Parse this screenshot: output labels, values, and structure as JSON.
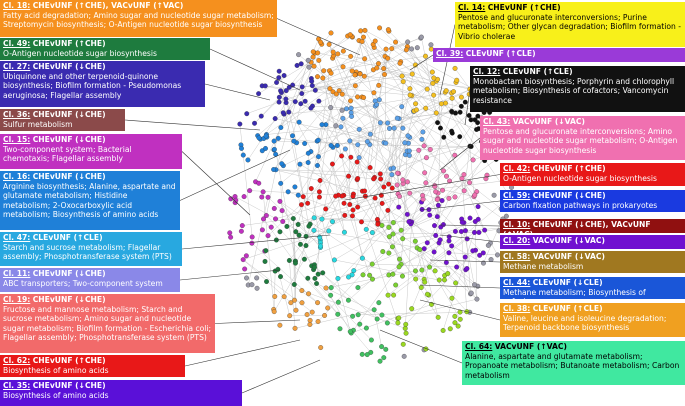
{
  "boxes": [
    {
      "id": "Cl. 18:",
      "label": "CHEvUNF (↑CHE), VACvUNF (↑VAC)",
      "text": "Fatty acid degradation; Amino sugar and nucleotide sugar metabolism; Streptomycin biosynthesis; O-Antigen nucleotide sugar biosynthesis"
    },
    {
      "id": "Cl. 49:",
      "label": "CHEvUNF (↑CHE)",
      "text": "O-Antigen nucleotide sugar biosynthesis"
    },
    {
      "id": "Cl. 27:",
      "label": "CHEvUNF (↓CHE)",
      "text": "Ubiquinone and other terpenoid-quinone biosynthesis; Biofilm formation - Pseudomonas aeruginosa; Flagellar assembly"
    },
    {
      "id": "Cl. 36:",
      "label": "CHEvUNF (↓CHE)",
      "text": "Sulfur metabolism"
    },
    {
      "id": "Cl. 15:",
      "label": "CHEvUNF (↓CHE)",
      "text": "Two-component system; Bacterial chemotaxis; Flagellar assembly"
    },
    {
      "id": "Cl. 16:",
      "label": "CHEvUNF (↓CHE)",
      "text": "Arginine biosynthesis; Alanine, aspartate and glutamate metabolism; Histidine metabolism; 2-Oxocarboxylic acid metabolism; Biosynthesis of amino acids"
    },
    {
      "id": "Cl. 47:",
      "label": "CLEvUNF (↑CLE)",
      "text": "Starch and sucrose metabolism; Flagellar assembly; Phosphotransferase system (PTS)"
    },
    {
      "id": "Cl. 11:",
      "label": "CHEvUNF (↓CHE)",
      "text": "ABC transporters; Two-component system"
    },
    {
      "id": "Cl. 19:",
      "label": "CHEvUNF (↓CHE)",
      "text": "Fructose and mannose metabolism; Starch and sucrose metabolism; Amino sugar and nucleotide sugar metabolism; Biofilm formation - Escherichia coli; Flagellar assembly; Phosphotransferase system (PTS)"
    },
    {
      "id": "Cl. 62:",
      "label": "CHEvUNF (↑CHE)",
      "text": "Biosynthesis of amino acids"
    },
    {
      "id": "Cl. 35:",
      "label": "CHEvUNF (↓CHE)",
      "text": "Biosynthesis of amino acids"
    },
    {
      "id": "Cl. 14:",
      "label": "CHEvUNF (↑CHE)",
      "text": "Pentose and glucuronate interconversions; Purine metabolism; Other glycan degradation; Biofilm formation - Vibrio cholerae"
    },
    {
      "id": "Cl. 39:",
      "label": "CLEvUNF (↑CLE)",
      "text": ""
    },
    {
      "id": "Cl. 12:",
      "label": "CLEvUNF (↑CLE)",
      "text": "Monobactam biosynthesis; Porphyrin and chlorophyll metabolism; Biosynthesis of cofactors; Vancomycin resistance"
    },
    {
      "id": "Cl. 43:",
      "label": "VACvUNF (↓VAC)",
      "text": "Pentose and glucuronate interconversions; Amino sugar and nucleotide sugar metabolism; O-Antigen nucleotide sugar biosynthesis"
    },
    {
      "id": "Cl. 42:",
      "label": "CHEvUNF (↑CHE)",
      "text": "O-Antigen nucleotide sugar biosynthesis"
    },
    {
      "id": "Cl. 59:",
      "label": "CHEvUNF (↓CHE)",
      "text": "Carbon fixation pathways in prokaryotes"
    },
    {
      "id": "Cl. 10:",
      "label": "CHEvUNF (↓CHE), VACvUNF (↑VAC)",
      "text": ""
    },
    {
      "id": "Cl. 20:",
      "label": "VACvUNF (↓VAC)",
      "text": ""
    },
    {
      "id": "Cl. 58:",
      "label": "VACvUNF (↓VAC)",
      "text": "Methane metabolism"
    },
    {
      "id": "Cl. 44:",
      "label": "CLEvUNF (↓CLE)",
      "text": "Methane metabolism; Biosynthesis of cofactors"
    },
    {
      "id": "Cl. 38:",
      "label": "CLEvUNF (↑CLE)",
      "text": "Valine, leucine and isoleucine degradation; Terpenoid backbone biosynthesis"
    },
    {
      "id": "Cl. 64:",
      "label": "VACvUNF (↑VAC)",
      "text": "Alanine, aspartate and glutamate metabolism; Propanoate metabolism; Butanoate metabolism; Carbon metabolism"
    }
  ]
}
